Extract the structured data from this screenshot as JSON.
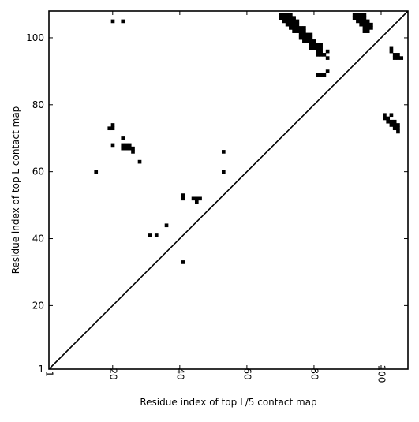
{
  "chart_data": {
    "type": "heatmap",
    "title": "",
    "xlabel": "Residue index of top L/5 contact map",
    "ylabel": "Residue index of top L contact map",
    "xlim": [
      1,
      108
    ],
    "ylim": [
      1,
      108
    ],
    "x_ticks": [
      1,
      20,
      40,
      60,
      80,
      100
    ],
    "y_ticks": [
      1,
      20,
      40,
      60,
      80,
      100
    ],
    "grid": false,
    "diagonal": true,
    "cell_color": "#000000",
    "background": "#ffffff",
    "upper_cells": [
      [
        20,
        105
      ],
      [
        23,
        105
      ],
      [
        70,
        106
      ],
      [
        70,
        107
      ],
      [
        71,
        105
      ],
      [
        71,
        106
      ],
      [
        71,
        107
      ],
      [
        72,
        104
      ],
      [
        72,
        105
      ],
      [
        72,
        106
      ],
      [
        72,
        107
      ],
      [
        73,
        103
      ],
      [
        73,
        104
      ],
      [
        73,
        105
      ],
      [
        73,
        106
      ],
      [
        73,
        107
      ],
      [
        74,
        102
      ],
      [
        74,
        103
      ],
      [
        74,
        104
      ],
      [
        74,
        105
      ],
      [
        74,
        106
      ],
      [
        75,
        102
      ],
      [
        75,
        103
      ],
      [
        75,
        104
      ],
      [
        75,
        105
      ],
      [
        76,
        100
      ],
      [
        76,
        101
      ],
      [
        76,
        102
      ],
      [
        76,
        103
      ],
      [
        77,
        99
      ],
      [
        77,
        100
      ],
      [
        77,
        101
      ],
      [
        77,
        102
      ],
      [
        77,
        103
      ],
      [
        78,
        99
      ],
      [
        78,
        100
      ],
      [
        78,
        101
      ],
      [
        79,
        97
      ],
      [
        79,
        98
      ],
      [
        79,
        99
      ],
      [
        79,
        100
      ],
      [
        79,
        101
      ],
      [
        80,
        97
      ],
      [
        80,
        98
      ],
      [
        80,
        99
      ],
      [
        81,
        95
      ],
      [
        81,
        96
      ],
      [
        81,
        97
      ],
      [
        81,
        98
      ],
      [
        82,
        95
      ],
      [
        82,
        96
      ],
      [
        82,
        97
      ],
      [
        82,
        98
      ],
      [
        83,
        95
      ],
      [
        84,
        94
      ],
      [
        84,
        96
      ],
      [
        81,
        89
      ],
      [
        82,
        89
      ],
      [
        83,
        89
      ],
      [
        84,
        90
      ],
      [
        92,
        106
      ],
      [
        92,
        107
      ],
      [
        93,
        105
      ],
      [
        93,
        106
      ],
      [
        93,
        107
      ],
      [
        94,
        104
      ],
      [
        94,
        105
      ],
      [
        94,
        106
      ],
      [
        94,
        107
      ],
      [
        95,
        102
      ],
      [
        95,
        103
      ],
      [
        95,
        104
      ],
      [
        95,
        105
      ],
      [
        95,
        106
      ],
      [
        95,
        107
      ],
      [
        96,
        102
      ],
      [
        96,
        103
      ],
      [
        96,
        104
      ],
      [
        96,
        105
      ],
      [
        97,
        103
      ],
      [
        97,
        104
      ],
      [
        103,
        96
      ],
      [
        103,
        97
      ],
      [
        104,
        94
      ],
      [
        104,
        95
      ],
      [
        105,
        94
      ],
      [
        105,
        95
      ],
      [
        106,
        94
      ]
    ],
    "lower_cells": [
      [
        15,
        60
      ],
      [
        19,
        73
      ],
      [
        20,
        73
      ],
      [
        20,
        74
      ],
      [
        20,
        68
      ],
      [
        23,
        70
      ],
      [
        23,
        67
      ],
      [
        23,
        68
      ],
      [
        24,
        67
      ],
      [
        24,
        68
      ],
      [
        25,
        67
      ],
      [
        25,
        68
      ],
      [
        26,
        66
      ],
      [
        26,
        67
      ],
      [
        28,
        63
      ],
      [
        31,
        41
      ],
      [
        33,
        41
      ],
      [
        36,
        44
      ],
      [
        41,
        52
      ],
      [
        41,
        53
      ],
      [
        41,
        33
      ],
      [
        44,
        52
      ],
      [
        45,
        51
      ],
      [
        45,
        52
      ],
      [
        46,
        52
      ],
      [
        53,
        60
      ],
      [
        53,
        66
      ],
      [
        101,
        76
      ],
      [
        101,
        77
      ],
      [
        102,
        75
      ],
      [
        102,
        76
      ],
      [
        103,
        74
      ],
      [
        103,
        75
      ],
      [
        103,
        77
      ],
      [
        104,
        73
      ],
      [
        104,
        74
      ],
      [
        104,
        75
      ],
      [
        105,
        72
      ],
      [
        105,
        73
      ],
      [
        105,
        74
      ]
    ]
  }
}
